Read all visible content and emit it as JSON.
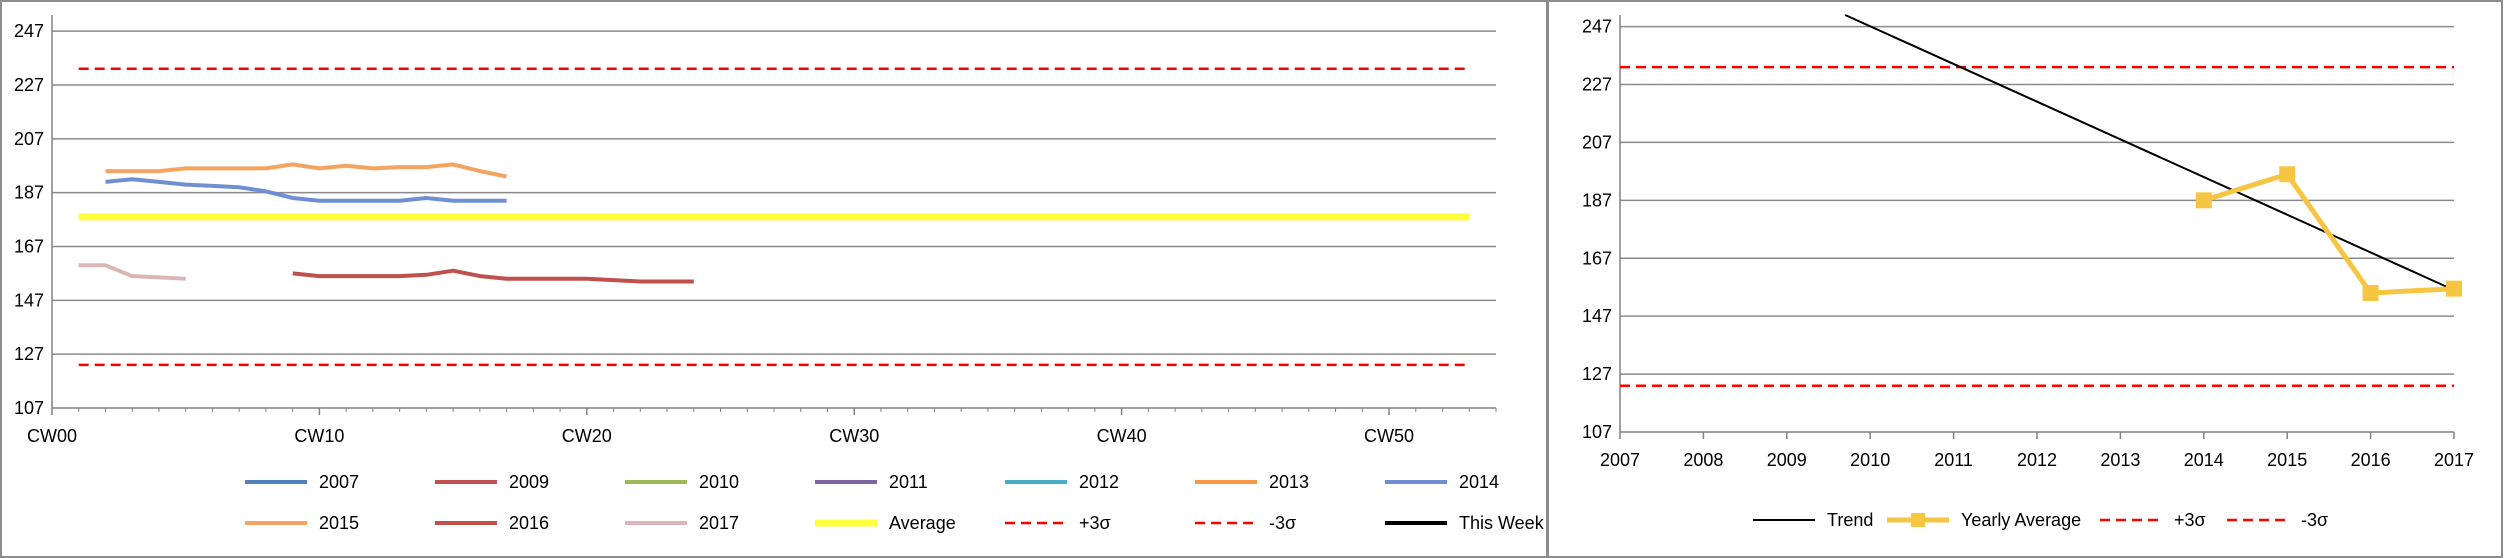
{
  "chart_data": [
    {
      "type": "line",
      "title": "",
      "xlabel": "",
      "ylabel": "",
      "xlim": [
        0,
        54
      ],
      "ylim": [
        107,
        253
      ],
      "x_ticks": [
        {
          "x": 0,
          "label": "CW00"
        },
        {
          "x": 10,
          "label": "CW10"
        },
        {
          "x": 20,
          "label": "CW20"
        },
        {
          "x": 30,
          "label": "CW30"
        },
        {
          "x": 40,
          "label": "CW40"
        },
        {
          "x": 50,
          "label": "CW50"
        }
      ],
      "y_ticks": [
        107,
        127,
        147,
        167,
        187,
        207,
        227,
        247
      ],
      "grid": true,
      "legend": "bottom",
      "series": [
        {
          "name": "2007",
          "color": "#4f81bd",
          "points": []
        },
        {
          "name": "2009",
          "color": "#c0504d",
          "points": []
        },
        {
          "name": "2010",
          "color": "#9bbb59",
          "points": []
        },
        {
          "name": "2011",
          "color": "#8064a2",
          "points": []
        },
        {
          "name": "2012",
          "color": "#4bacc6",
          "points": []
        },
        {
          "name": "2013",
          "color": "#f79646",
          "points": []
        },
        {
          "name": "2014",
          "color": "#6f8fd4",
          "points": [
            [
              2,
              191
            ],
            [
              3,
              192
            ],
            [
              4,
              191
            ],
            [
              5,
              190
            ],
            [
              6,
              189.5
            ],
            [
              7,
              189
            ],
            [
              8,
              187.5
            ],
            [
              9,
              185
            ],
            [
              10,
              184
            ],
            [
              11,
              184
            ],
            [
              12,
              184
            ],
            [
              13,
              184
            ],
            [
              14,
              185
            ],
            [
              15,
              184
            ],
            [
              16,
              184
            ],
            [
              17,
              184
            ]
          ]
        },
        {
          "name": "2015",
          "color": "#f4a460",
          "points": [
            [
              2,
              195
            ],
            [
              3,
              195
            ],
            [
              4,
              195
            ],
            [
              5,
              196
            ],
            [
              6,
              196
            ],
            [
              7,
              196
            ],
            [
              8,
              196
            ],
            [
              9,
              197.5
            ],
            [
              10,
              196
            ],
            [
              11,
              197
            ],
            [
              12,
              196
            ],
            [
              13,
              196.5
            ],
            [
              14,
              196.5
            ],
            [
              15,
              197.5
            ],
            [
              16,
              195
            ],
            [
              17,
              193
            ]
          ]
        },
        {
          "name": "2016",
          "color": "#c0504d",
          "points": [
            [
              9,
              157
            ],
            [
              10,
              156
            ],
            [
              11,
              156
            ],
            [
              12,
              156
            ],
            [
              13,
              156
            ],
            [
              14,
              156.5
            ],
            [
              15,
              158
            ],
            [
              16,
              156
            ],
            [
              17,
              155
            ],
            [
              18,
              155
            ],
            [
              19,
              155
            ],
            [
              20,
              155
            ],
            [
              21,
              154.5
            ],
            [
              22,
              154
            ],
            [
              23,
              154
            ],
            [
              24,
              154
            ]
          ]
        },
        {
          "name": "2017",
          "color": "#dcb6b6",
          "points": [
            [
              1,
              160
            ],
            [
              2,
              160
            ],
            [
              3,
              156
            ],
            [
              4,
              155.5
            ],
            [
              5,
              155
            ]
          ]
        },
        {
          "name": "Average",
          "color": "#ffff3c",
          "points": [
            [
              1,
              178
            ],
            [
              53,
              178
            ]
          ]
        },
        {
          "name": "+3σ",
          "color": "#ff0000",
          "dashed": true,
          "points": [
            [
              1,
              233
            ],
            [
              53,
              233
            ]
          ]
        },
        {
          "name": "-3σ",
          "color": "#ff0000",
          "dashed": true,
          "points": [
            [
              1,
              123
            ],
            [
              53,
              123
            ]
          ]
        },
        {
          "name": "This Week",
          "color": "#000000",
          "points": []
        }
      ]
    },
    {
      "type": "line",
      "title": "",
      "xlabel": "",
      "ylabel": "",
      "xlim": [
        2007,
        2017
      ],
      "ylim": [
        107,
        251
      ],
      "x_ticks": [
        2007,
        2008,
        2009,
        2010,
        2011,
        2012,
        2013,
        2014,
        2015,
        2016,
        2017
      ],
      "y_ticks": [
        107,
        127,
        147,
        167,
        187,
        207,
        227,
        247
      ],
      "grid": true,
      "legend": "bottom",
      "series": [
        {
          "name": "Trend",
          "color": "#000000",
          "points": [
            [
              2009.7,
              251
            ],
            [
              2017,
              156
            ]
          ]
        },
        {
          "name": "Yearly Average",
          "color": "#f6c642",
          "marker": "square",
          "points": [
            [
              2014,
              187
            ],
            [
              2015,
              196
            ],
            [
              2016,
              155
            ],
            [
              2017,
              156.5
            ]
          ]
        },
        {
          "name": "+3σ",
          "color": "#ff0000",
          "dashed": true,
          "points": [
            [
              2007,
              233
            ],
            [
              2017,
              233
            ]
          ]
        },
        {
          "name": "-3σ",
          "color": "#ff0000",
          "dashed": true,
          "points": [
            [
              2007,
              123
            ],
            [
              2017,
              123
            ]
          ]
        }
      ]
    }
  ]
}
